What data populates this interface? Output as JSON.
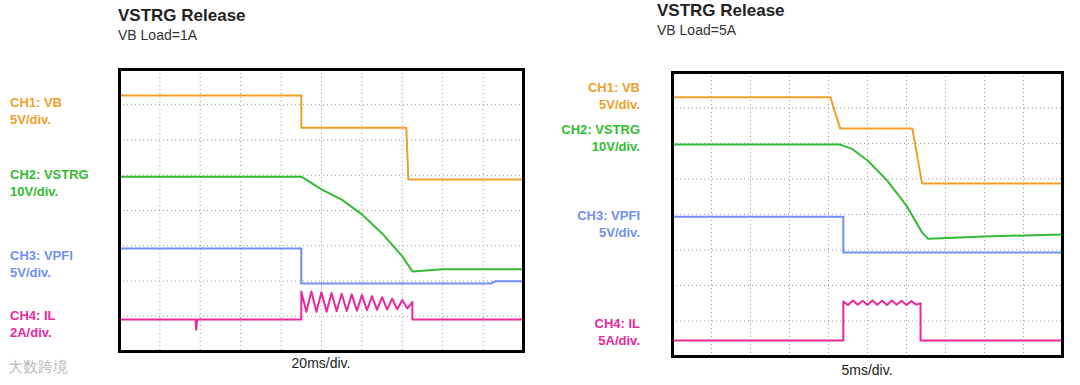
{
  "chart_data": [
    {
      "type": "line",
      "title": "VSTRG Release",
      "subtitle": "VB Load=1A",
      "xlabel": "20ms/div.",
      "xlim": [
        0,
        10
      ],
      "ylim": [
        0,
        8
      ],
      "xticks": [
        0,
        1,
        2,
        3,
        4,
        5,
        6,
        7,
        8,
        9,
        10
      ],
      "yticks": [
        0,
        1,
        2,
        3,
        4,
        5,
        6,
        7,
        8
      ],
      "grid": true,
      "tick_labels": false,
      "series": [
        {
          "name": "CH1: VB",
          "scale_label": "5V/div.",
          "color": "#f0a028",
          "x": [
            0,
            4.5,
            4.5,
            7.1,
            7.15,
            10
          ],
          "values": [
            7.26,
            7.26,
            6.35,
            6.35,
            4.88,
            4.88
          ]
        },
        {
          "name": "CH2: VSTRG",
          "scale_label": "10V/div.",
          "color": "#33bb33",
          "x": [
            0,
            4.5,
            5,
            5.5,
            6,
            6.5,
            7,
            7.25,
            8,
            10
          ],
          "values": [
            4.96,
            4.96,
            4.6,
            4.31,
            3.89,
            3.35,
            2.7,
            2.27,
            2.33,
            2.33
          ]
        },
        {
          "name": "CH3: VPFI",
          "scale_label": "5V/div.",
          "color": "#6f8ff5",
          "x": [
            0,
            4.5,
            4.5,
            9.2,
            9.3,
            10
          ],
          "values": [
            2.92,
            2.92,
            1.93,
            1.93,
            1.99,
            1.99
          ]
        },
        {
          "name": "CH4: IL",
          "scale_label": "2A/div.",
          "color": "#e8289c",
          "x": [
            0,
            1.88,
            1.9,
            1.92,
            4.5,
            4.5,
            4.625,
            4.75,
            4.875,
            5.0,
            5.125,
            5.25,
            5.375,
            5.5,
            5.625,
            5.75,
            5.875,
            6.0,
            6.125,
            6.25,
            6.375,
            6.5,
            6.625,
            6.75,
            6.875,
            7.0,
            7.125,
            7.25,
            7.25,
            10
          ],
          "values": [
            0.91,
            0.91,
            0.62,
            0.91,
            0.91,
            1.7,
            1.13,
            1.7,
            1.13,
            1.68,
            1.13,
            1.66,
            1.14,
            1.64,
            1.15,
            1.62,
            1.16,
            1.6,
            1.17,
            1.57,
            1.18,
            1.54,
            1.19,
            1.5,
            1.2,
            1.46,
            1.22,
            1.4,
            0.91,
            0.91
          ]
        }
      ]
    },
    {
      "type": "line",
      "title": "VSTRG Release",
      "subtitle": "VB Load=5A",
      "xlabel": "5ms/div.",
      "xlim": [
        0,
        10
      ],
      "ylim": [
        0,
        8
      ],
      "xticks": [
        0,
        1,
        2,
        3,
        4,
        5,
        6,
        7,
        8,
        9,
        10
      ],
      "yticks": [
        0,
        1,
        2,
        3,
        4,
        5,
        6,
        7,
        8
      ],
      "grid": true,
      "tick_labels": false,
      "series": [
        {
          "name": "CH1: VB",
          "scale_label": "5V/div.",
          "color": "#f0a028",
          "x": [
            0,
            4.05,
            4.3,
            6.15,
            6.4,
            10
          ],
          "values": [
            7.3,
            7.3,
            6.42,
            6.42,
            4.87,
            4.87
          ]
        },
        {
          "name": "CH2: VSTRG",
          "scale_label": "10V/div.",
          "color": "#33bb33",
          "x": [
            0,
            4.3,
            4.6,
            5,
            5.5,
            6,
            6.4,
            6.55,
            8,
            10
          ],
          "values": [
            5.97,
            5.97,
            5.85,
            5.52,
            4.96,
            4.25,
            3.49,
            3.32,
            3.38,
            3.44
          ]
        },
        {
          "name": "CH3: VPFI",
          "scale_label": "5V/div.",
          "color": "#6f8ff5",
          "x": [
            0,
            4.38,
            4.38,
            10
          ],
          "values": [
            3.94,
            3.94,
            2.93,
            2.93
          ]
        },
        {
          "name": "CH4: IL",
          "scale_label": "5A/div.",
          "color": "#e8289c",
          "x": [
            0,
            4.38,
            4.38,
            4.5,
            4.625,
            4.75,
            4.875,
            5.0,
            5.125,
            5.25,
            5.375,
            5.5,
            5.625,
            5.75,
            5.875,
            6.0,
            6.125,
            6.25,
            6.36,
            6.36,
            10
          ],
          "values": [
            0.45,
            0.45,
            1.55,
            1.45,
            1.58,
            1.46,
            1.57,
            1.45,
            1.58,
            1.46,
            1.57,
            1.45,
            1.58,
            1.46,
            1.57,
            1.45,
            1.56,
            1.46,
            1.5,
            0.45,
            0.45
          ]
        }
      ]
    }
  ],
  "watermark": "大数跨境"
}
